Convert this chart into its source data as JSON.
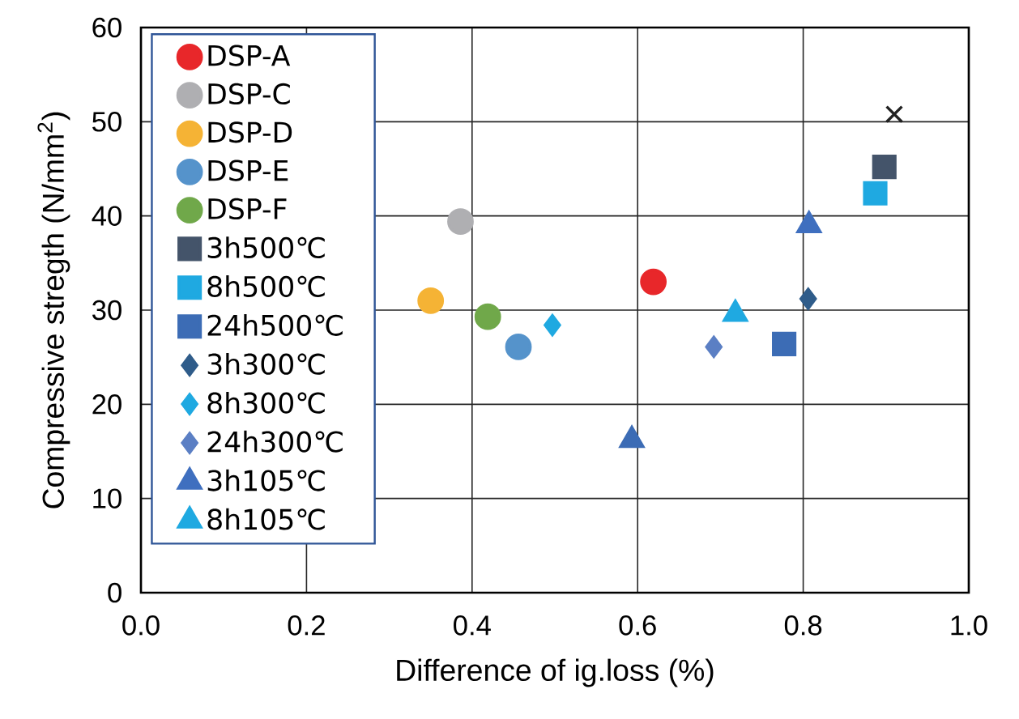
{
  "chart_data": {
    "type": "scatter",
    "xlabel": "Difference of ig.loss (%)",
    "ylabel": "Compressive stregth (N/mm$^{2}$)",
    "xlim": [
      0,
      1
    ],
    "ylim": [
      0,
      60
    ],
    "xticks": [
      {
        "value": 0,
        "label": "0.0"
      },
      {
        "value": 0.2,
        "label": "0.2"
      },
      {
        "value": 0.4,
        "label": "0.4"
      },
      {
        "value": 0.6,
        "label": "0.6"
      },
      {
        "value": 0.8,
        "label": "0.8"
      },
      {
        "value": 1,
        "label": "1.0"
      }
    ],
    "yticks": [
      0,
      10,
      20,
      30,
      40,
      50,
      60
    ],
    "grid": true,
    "legend": "top left",
    "series": [
      {
        "name": "DSP-A",
        "color": "#e8272a",
        "marker": "circle",
        "x": [
          0.619
        ],
        "values": [
          33.0
        ]
      },
      {
        "name": "DSP-C",
        "color": "#afafb2",
        "marker": "circle",
        "x": [
          0.386
        ],
        "values": [
          39.4
        ]
      },
      {
        "name": "DSP-D",
        "color": "#f5b335",
        "marker": "circle",
        "x": [
          0.35
        ],
        "values": [
          31.0
        ]
      },
      {
        "name": "DSP-E",
        "color": "#5593cb",
        "marker": "circle",
        "x": [
          0.456
        ],
        "values": [
          26.1
        ]
      },
      {
        "name": "DSP-F",
        "color": "#70a84a",
        "marker": "circle",
        "x": [
          0.419
        ],
        "values": [
          29.3
        ]
      },
      {
        "name": "3h500℃",
        "color": "#44546a",
        "marker": "square",
        "x": [
          0.898
        ],
        "values": [
          45.2
        ]
      },
      {
        "name": "8h500℃",
        "color": "#1fa9e1",
        "marker": "square",
        "x": [
          0.887
        ],
        "values": [
          42.4
        ]
      },
      {
        "name": "24h500℃",
        "color": "#3c6cb5",
        "marker": "square",
        "x": [
          0.777
        ],
        "values": [
          26.4
        ]
      },
      {
        "name": "3h300℃",
        "color": "#2f5c8a",
        "marker": "diamond",
        "x": [
          0.806
        ],
        "values": [
          31.2
        ]
      },
      {
        "name": "8h300℃",
        "color": "#1fa9e1",
        "marker": "diamond",
        "x": [
          0.497
        ],
        "values": [
          28.4
        ]
      },
      {
        "name": "24h300℃",
        "color": "#5b7fc4",
        "marker": "diamond",
        "x": [
          0.692
        ],
        "values": [
          26.1
        ]
      },
      {
        "name": "3h105℃",
        "color": "#3f6fbf",
        "marker": "triangle",
        "x": [
          0.807
        ],
        "values": [
          39.0
        ]
      },
      {
        "name": "8h105℃",
        "color": "#1fa9e1",
        "marker": "triangle",
        "x": [
          0.718
        ],
        "values": [
          29.6
        ]
      },
      {
        "color": "#3c6cb5",
        "marker": "triangle",
        "x": [
          0.593
        ],
        "values": [
          16.2
        ]
      },
      {
        "color": "#222222",
        "marker": "cross",
        "x": [
          0.91
        ],
        "values": [
          50.8
        ]
      }
    ]
  }
}
